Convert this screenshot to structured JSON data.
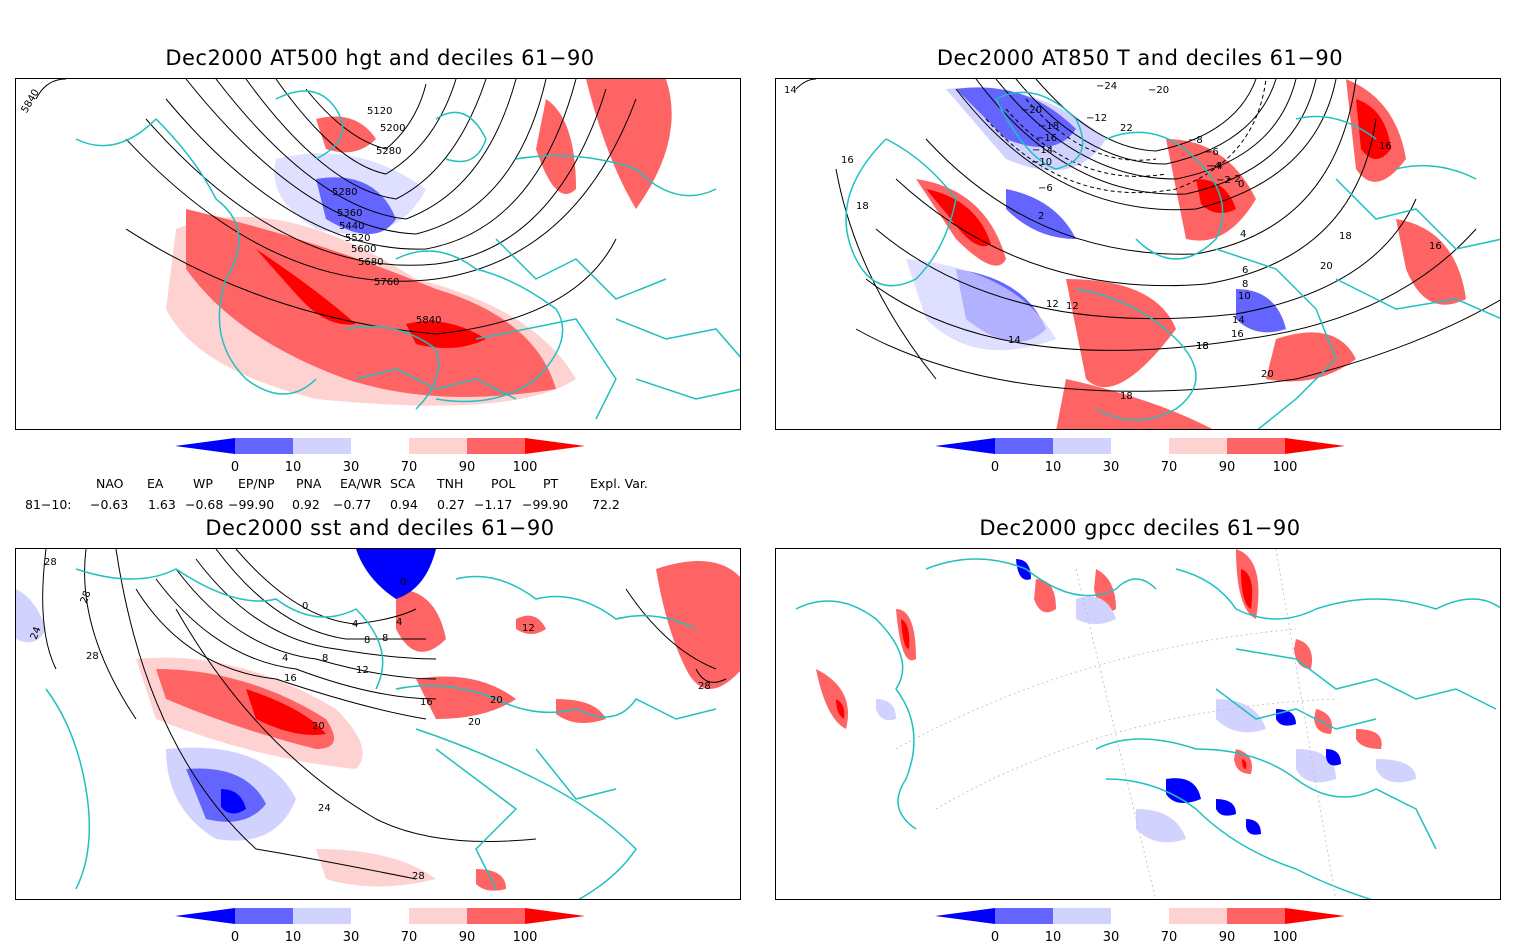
{
  "panels": [
    {
      "id": "hgt",
      "title": "Dec2000 AT500 hgt and deciles 61−90",
      "contour_labels": [
        "5840",
        "5120",
        "5200",
        "5280",
        "5280",
        "5360",
        "5440",
        "5520",
        "5600",
        "5680",
        "5760",
        "5840"
      ]
    },
    {
      "id": "t850",
      "title": "Dec2000 AT850 T and deciles 61−90",
      "contour_labels": [
        "14",
        "16",
        "18",
        "−24",
        "−20",
        "−20",
        "−18",
        "−16",
        "−14",
        "−12",
        "−10",
        "−8",
        "−6",
        "−4",
        "−2",
        "0",
        "2",
        "4",
        "6",
        "8",
        "10",
        "12",
        "14",
        "16",
        "18",
        "20",
        "16",
        "18",
        "16",
        "12",
        "14",
        "18",
        "20",
        "18",
        "22",
        "−2",
        "−4",
        "−6"
      ]
    },
    {
      "id": "sst",
      "title": "Dec2000 sst and deciles 61−90",
      "contour_labels": [
        "28",
        "24",
        "28",
        "28",
        "0",
        "0",
        "4",
        "8",
        "4",
        "8",
        "12",
        "16",
        "20",
        "24",
        "28",
        "16",
        "20",
        "20",
        "12",
        "28",
        "8",
        "4"
      ]
    },
    {
      "id": "gpcc",
      "title": "Dec2000 gpcc deciles 61−90",
      "contour_labels": []
    }
  ],
  "colorbar": {
    "ticks": [
      "0",
      "10",
      "30",
      "70",
      "90",
      "100"
    ],
    "colors": [
      "#0000ff",
      "#6464ff",
      "#d2d2ff",
      "#ffffff",
      "#ffd2d2",
      "#ff6464",
      "#ff0000"
    ]
  },
  "indices": {
    "headers": [
      "NAO",
      "EA",
      "WP",
      "EP/NP",
      "PNA",
      "EA/WR",
      "SCA",
      "TNH",
      "POL",
      "PT",
      "Expl. Var."
    ],
    "row_label": "81−10:",
    "values": [
      "−0.63",
      "1.63",
      "−0.68",
      "−99.90",
      "0.92",
      "−0.77",
      "0.94",
      "0.27",
      "−1.17",
      "−99.90",
      "72.2"
    ]
  }
}
